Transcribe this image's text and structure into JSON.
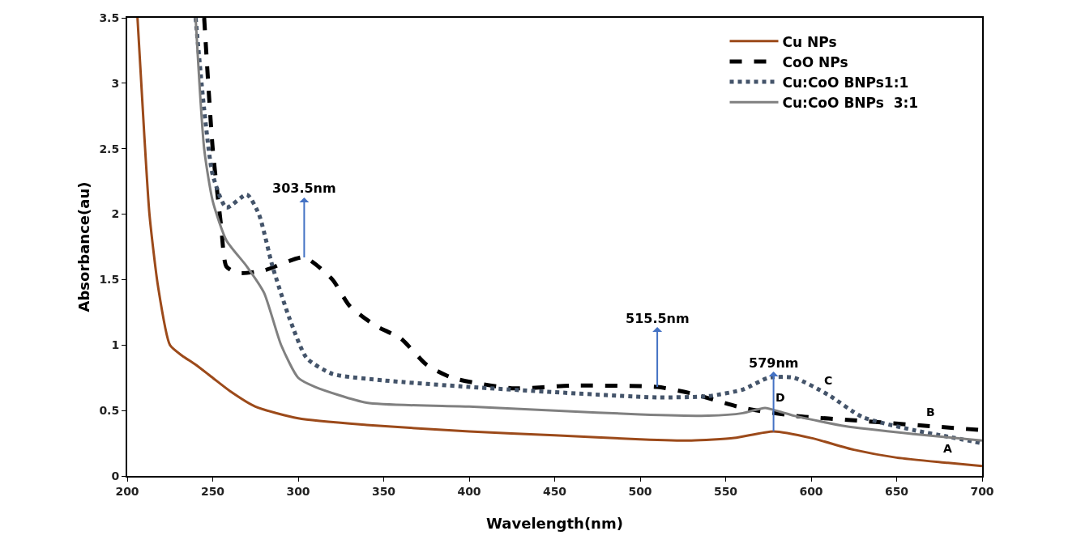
{
  "chart_data": {
    "type": "line",
    "xlabel": "Wavelength(nm)",
    "ylabel": "Absorbance(au)",
    "xlim": [
      200,
      700
    ],
    "xticks": [
      200,
      250,
      300,
      350,
      400,
      450,
      500,
      550,
      600,
      650,
      700
    ],
    "ylim": [
      0,
      3.5
    ],
    "yticks": [
      0,
      0.5,
      1,
      1.5,
      2,
      2.5,
      3,
      3.5
    ],
    "grid": false,
    "legend": "top right",
    "marker": "none",
    "series": [
      {
        "name": "Cu NPs",
        "color": "#9c4a1a",
        "line_style": "solid",
        "x": [
          206,
          210,
          213,
          218,
          225,
          232,
          240,
          250,
          260,
          275,
          300,
          340,
          400,
          450,
          500,
          530,
          555,
          578,
          600,
          625,
          650,
          680,
          700
        ],
        "values": [
          3.5,
          2.6,
          2.0,
          1.45,
          1.0,
          0.92,
          0.85,
          0.75,
          0.65,
          0.53,
          0.44,
          0.39,
          0.34,
          0.31,
          0.28,
          0.27,
          0.29,
          0.34,
          0.29,
          0.2,
          0.14,
          0.1,
          0.075
        ]
      },
      {
        "name": "CoO NPs",
        "color": "#000000",
        "line_style": "dashed",
        "x": [
          245,
          250,
          255,
          258,
          265,
          280,
          303.5,
          320,
          330,
          345,
          360,
          375,
          390,
          425,
          460,
          510,
          530,
          560,
          590,
          630,
          670,
          700
        ],
        "values": [
          3.5,
          2.5,
          1.9,
          1.6,
          1.55,
          1.57,
          1.67,
          1.5,
          1.3,
          1.15,
          1.05,
          0.85,
          0.75,
          0.67,
          0.69,
          0.68,
          0.63,
          0.52,
          0.46,
          0.42,
          0.38,
          0.35
        ]
      },
      {
        "name": "Cu:CoO BNPs1:1",
        "color": "#44546a",
        "line_style": "dotted",
        "x": [
          240,
          245,
          250,
          258,
          270,
          277,
          285,
          295,
          305,
          320,
          350,
          400,
          450,
          510,
          540,
          560,
          575,
          590,
          610,
          630,
          660,
          680,
          700
        ],
        "values": [
          3.5,
          2.8,
          2.3,
          2.05,
          2.15,
          2.0,
          1.6,
          1.2,
          0.9,
          0.78,
          0.73,
          0.68,
          0.64,
          0.6,
          0.61,
          0.66,
          0.75,
          0.75,
          0.62,
          0.45,
          0.35,
          0.3,
          0.25
        ]
      },
      {
        "name": "Cu:CoO BNPs  3:1",
        "color": "#808080",
        "line_style": "solid",
        "x": [
          240,
          245,
          250,
          258,
          270,
          280,
          290,
          300,
          310,
          340,
          400,
          450,
          500,
          540,
          560,
          573,
          582,
          590,
          620,
          660,
          700
        ],
        "values": [
          3.5,
          2.5,
          2.1,
          1.8,
          1.6,
          1.4,
          1.0,
          0.75,
          0.68,
          0.56,
          0.53,
          0.5,
          0.47,
          0.46,
          0.48,
          0.52,
          0.49,
          0.46,
          0.38,
          0.32,
          0.27
        ]
      }
    ],
    "annotations": [
      {
        "text": "303.5nm",
        "x": 303.5,
        "y": 1.67
      },
      {
        "text": "515.5nm",
        "x": 510,
        "y": 0.68
      },
      {
        "text": "579nm",
        "x": 578,
        "y": 0.34
      },
      {
        "text": "A",
        "x": 680,
        "y": 0.1
      },
      {
        "text": "B",
        "x": 670,
        "y": 0.38
      },
      {
        "text": "C",
        "x": 610,
        "y": 0.62
      },
      {
        "text": "D",
        "x": 582,
        "y": 0.49
      }
    ]
  }
}
